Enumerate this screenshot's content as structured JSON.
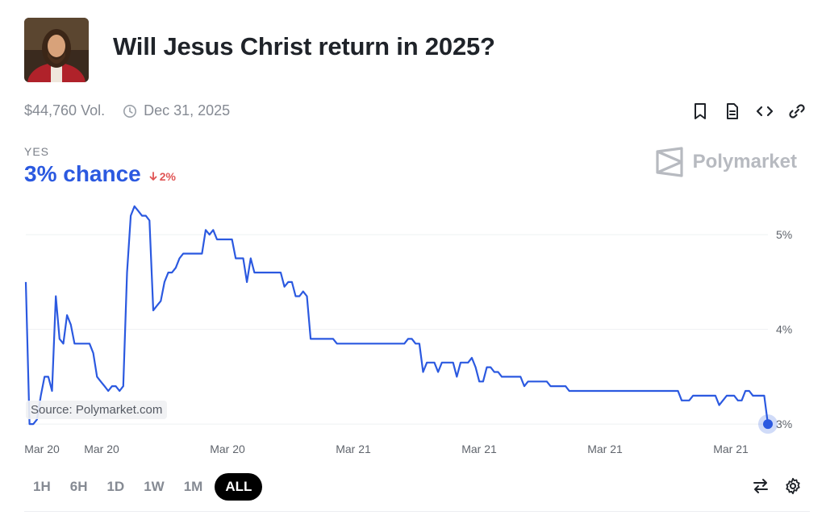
{
  "market": {
    "title": "Will Jesus Christ return in 2025?",
    "volume": "$44,760 Vol.",
    "end_date": "Dec 31, 2025",
    "outcome_label": "YES",
    "chance_text": "3% chance",
    "change_text": "2%"
  },
  "brand": {
    "name": "Polymarket"
  },
  "source_label": "Source: Polymarket.com",
  "icons": {
    "header": [
      "bookmark-icon",
      "document-icon",
      "code-icon",
      "link-icon"
    ],
    "clock": "clock-icon",
    "tools": [
      "swap-icon",
      "gear-icon"
    ]
  },
  "time_ranges": [
    "1H",
    "6H",
    "1D",
    "1W",
    "1M",
    "ALL"
  ],
  "active_range": "ALL",
  "colors": {
    "line": "#2b59e0",
    "down": "#e05454",
    "text": "#1f2329",
    "muted": "#858a93"
  },
  "chart_data": {
    "type": "line",
    "x_tick_labels": [
      "Mar 20",
      "Mar 20",
      "Mar 20",
      "Mar 21",
      "Mar 21",
      "Mar 21",
      "Mar 21"
    ],
    "y_tick_labels": [
      "3%",
      "4%",
      "5%"
    ],
    "y_ticks": [
      3,
      4,
      5
    ],
    "ylim": [
      2.95,
      5.35
    ],
    "grid": true,
    "series": [
      {
        "values": [
          4.5,
          3.0,
          3.0,
          3.05,
          3.3,
          3.5,
          3.5,
          3.35,
          4.35,
          3.9,
          3.85,
          4.15,
          4.05,
          3.85,
          3.85,
          3.85,
          3.85,
          3.85,
          3.75,
          3.5,
          3.45,
          3.4,
          3.35,
          3.4,
          3.4,
          3.35,
          3.4,
          4.6,
          5.2,
          5.3,
          5.25,
          5.2,
          5.2,
          5.15,
          4.2,
          4.25,
          4.3,
          4.5,
          4.6,
          4.6,
          4.65,
          4.75,
          4.8,
          4.8,
          4.8,
          4.8,
          4.8,
          4.8,
          5.05,
          5.0,
          5.05,
          4.95,
          4.95,
          4.95,
          4.95,
          4.95,
          4.75,
          4.75,
          4.75,
          4.5,
          4.75,
          4.6,
          4.6,
          4.6,
          4.6,
          4.6,
          4.6,
          4.6,
          4.6,
          4.45,
          4.5,
          4.5,
          4.35,
          4.35,
          4.4,
          4.35,
          3.9,
          3.9,
          3.9,
          3.9,
          3.9,
          3.9,
          3.9,
          3.85,
          3.85,
          3.85,
          3.85,
          3.85,
          3.85,
          3.85,
          3.85,
          3.85,
          3.85,
          3.85,
          3.85,
          3.85,
          3.85,
          3.85,
          3.85,
          3.85,
          3.85,
          3.85,
          3.9,
          3.9,
          3.85,
          3.85,
          3.55,
          3.65,
          3.65,
          3.65,
          3.55,
          3.65,
          3.65,
          3.65,
          3.65,
          3.5,
          3.65,
          3.65,
          3.65,
          3.7,
          3.6,
          3.45,
          3.45,
          3.6,
          3.6,
          3.55,
          3.55,
          3.5,
          3.5,
          3.5,
          3.5,
          3.5,
          3.5,
          3.4,
          3.45,
          3.45,
          3.45,
          3.45,
          3.45,
          3.45,
          3.4,
          3.4,
          3.4,
          3.4,
          3.4,
          3.35,
          3.35,
          3.35,
          3.35,
          3.35,
          3.35,
          3.35,
          3.35,
          3.35,
          3.35,
          3.35,
          3.35,
          3.35,
          3.35,
          3.35,
          3.35,
          3.35,
          3.35,
          3.35,
          3.35,
          3.35,
          3.35,
          3.35,
          3.35,
          3.35,
          3.35,
          3.35,
          3.35,
          3.35,
          3.35,
          3.25,
          3.25,
          3.25,
          3.3,
          3.3,
          3.3,
          3.3,
          3.3,
          3.3,
          3.3,
          3.2,
          3.25,
          3.3,
          3.3,
          3.3,
          3.25,
          3.25,
          3.35,
          3.35,
          3.3,
          3.3,
          3.3,
          3.3,
          3.0
        ]
      }
    ],
    "last_point_label": "3%"
  }
}
